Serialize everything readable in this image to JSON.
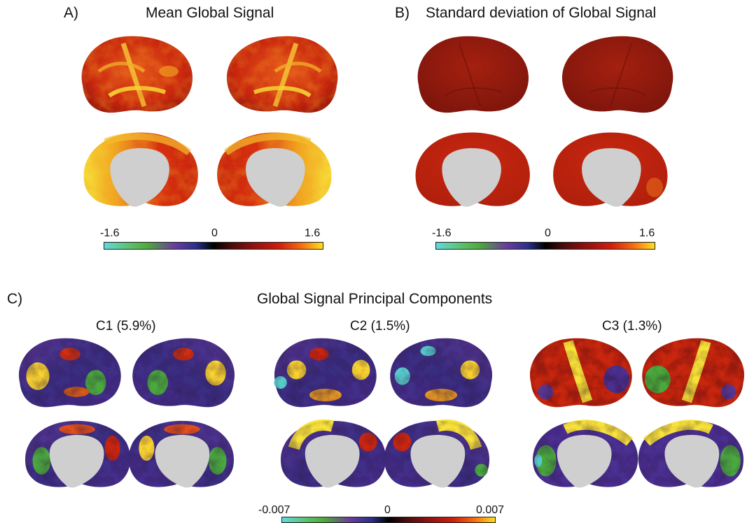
{
  "panels": {
    "a": {
      "letter": "A)",
      "title": "Mean Global Signal",
      "colorbar": {
        "min": "-1.6",
        "mid": "0",
        "max": "1.6"
      }
    },
    "b": {
      "letter": "B)",
      "title": "Standard deviation of Global Signal",
      "colorbar": {
        "min": "-1.6",
        "mid": "0",
        "max": "1.6"
      }
    },
    "c": {
      "letter": "C)",
      "title": "Global Signal Principal Components",
      "components": [
        {
          "label": "C1 (5.9%)"
        },
        {
          "label": "C2 (1.5%)"
        },
        {
          "label": "C3 (1.3%)"
        }
      ],
      "colorbar": {
        "min": "-0.007",
        "mid": "0",
        "max": "0.007"
      }
    }
  },
  "colors": {
    "red": "#c8260e",
    "dark_red": "#9a1a0e",
    "yellow": "#f7e23a",
    "orange": "#f0781a",
    "purple": "#5a3a98",
    "green": "#4aa83e",
    "cyan": "#56c9c9",
    "gray": "#cfcfcf"
  }
}
